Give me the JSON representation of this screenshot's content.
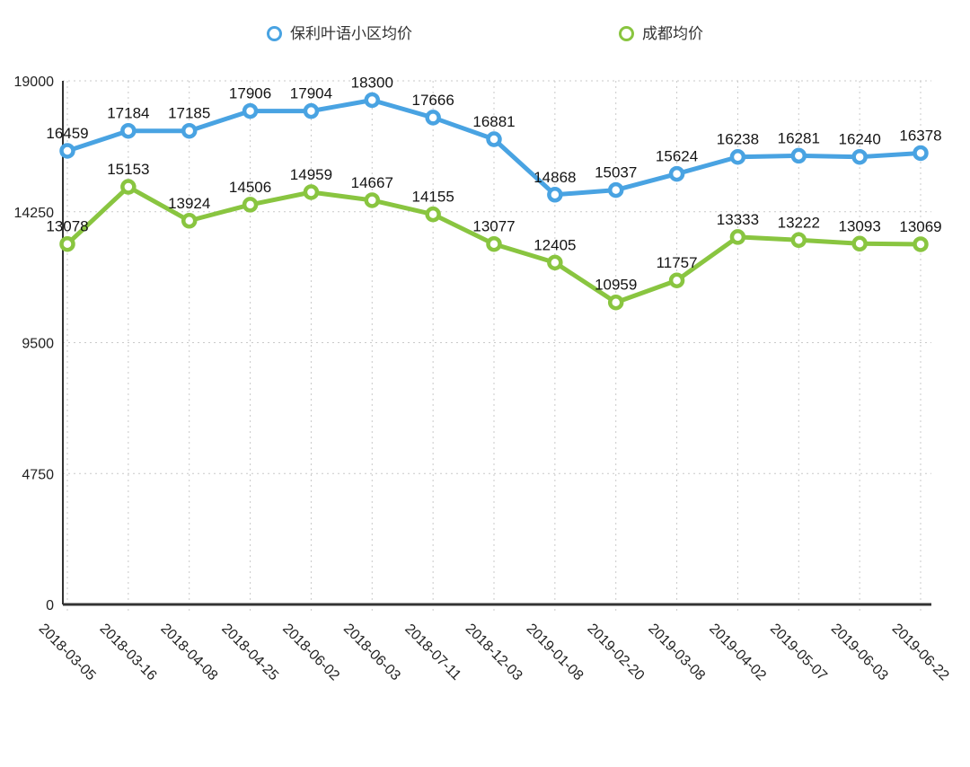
{
  "chart_data": {
    "type": "line",
    "title": "",
    "xlabel": "",
    "ylabel": "",
    "legend_position": "top",
    "grid": "dotted",
    "ylim": [
      0,
      19000
    ],
    "yticks": [
      0,
      4750,
      9500,
      14250,
      19000
    ],
    "categories": [
      "2018-03-05",
      "2018-03-16",
      "2018-04-08",
      "2018-04-25",
      "2018-06-02",
      "2018-06-03",
      "2018-07-11",
      "2018-12-03",
      "2019-01-08",
      "2019-02-20",
      "2019-03-08",
      "2019-04-02",
      "2019-05-07",
      "2019-06-03",
      "2019-06-22"
    ],
    "series": [
      {
        "id": "poly-yeyu",
        "name": "保利叶语小区均价",
        "color": "#49a3e2",
        "marker": "hollow-circle",
        "values": [
          16459,
          17184,
          17185,
          17906,
          17904,
          18300,
          17666,
          16881,
          14868,
          15037,
          15624,
          16238,
          16281,
          16240,
          16378
        ]
      },
      {
        "id": "chengdu-avg",
        "name": "成都均价",
        "color": "#89c540",
        "marker": "hollow-circle",
        "values": [
          13078,
          15153,
          13924,
          14506,
          14959,
          14667,
          14155,
          13077,
          12405,
          10959,
          11757,
          13333,
          13222,
          13093,
          13069
        ]
      }
    ]
  }
}
